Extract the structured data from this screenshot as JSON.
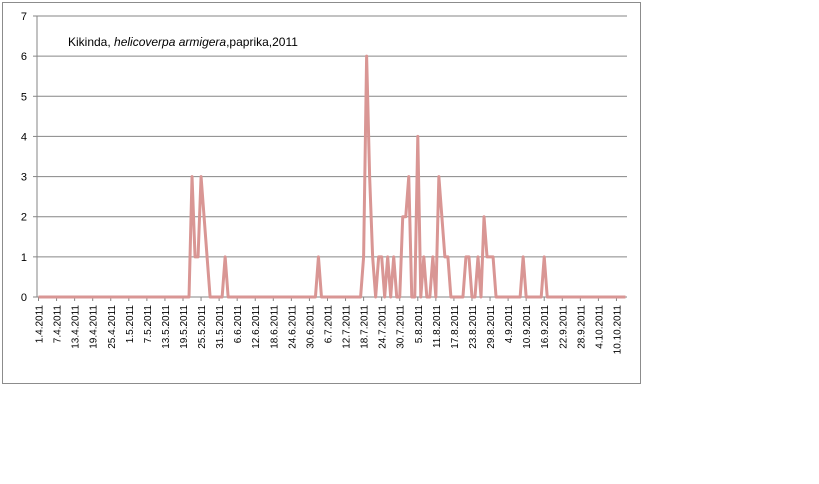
{
  "chart_data": {
    "type": "line",
    "title_parts": {
      "place": "Kikinda, ",
      "species": "helicoverpa armigera",
      "rest": ",paprika,2011"
    },
    "xlabel": "",
    "ylabel": "",
    "ylim": [
      0,
      7
    ],
    "yticks": [
      "0",
      "1",
      "2",
      "3",
      "4",
      "5",
      "6",
      "7"
    ],
    "grid": true,
    "legend": "none",
    "line_color": "#d99694",
    "xticks": [
      "1.4.2011",
      "7.4.2011",
      "13.4.2011",
      "19.4.2011",
      "25.4.2011",
      "1.5.2011",
      "7.5.2011",
      "13.5.2011",
      "19.5.2011",
      "25.5.2011",
      "31.5.2011",
      "6.6.2011",
      "12.6.2011",
      "18.6.2011",
      "24.6.2011",
      "30.6.2011",
      "6.7.2011",
      "12.7.2011",
      "18.7.2011",
      "24.7.2011",
      "30.7.2011",
      "5.8.2011",
      "11.8.2011",
      "17.8.2011",
      "23.8.2011",
      "29.8.2011",
      "4.9.2011",
      "10.9.2011",
      "16.9.2011",
      "22.9.2011",
      "28.9.2011",
      "4.10.2011",
      "10.10.2011"
    ],
    "x_start": "1.4.2011",
    "x_end": "13.10.2011",
    "points": [
      {
        "date": "22.5.2011",
        "y": 3
      },
      {
        "date": "23.5.2011",
        "y": 1
      },
      {
        "date": "24.5.2011",
        "y": 1
      },
      {
        "date": "25.5.2011",
        "y": 3
      },
      {
        "date": "26.5.2011",
        "y": 2
      },
      {
        "date": "27.5.2011",
        "y": 1
      },
      {
        "date": "2.6.2011",
        "y": 1
      },
      {
        "date": "3.7.2011",
        "y": 1
      },
      {
        "date": "18.7.2011",
        "y": 1
      },
      {
        "date": "19.7.2011",
        "y": 6
      },
      {
        "date": "20.7.2011",
        "y": 3
      },
      {
        "date": "21.7.2011",
        "y": 1
      },
      {
        "date": "23.7.2011",
        "y": 1
      },
      {
        "date": "24.7.2011",
        "y": 1
      },
      {
        "date": "26.7.2011",
        "y": 1
      },
      {
        "date": "28.7.2011",
        "y": 1
      },
      {
        "date": "31.7.2011",
        "y": 2
      },
      {
        "date": "1.8.2011",
        "y": 2
      },
      {
        "date": "2.8.2011",
        "y": 3
      },
      {
        "date": "5.8.2011",
        "y": 4
      },
      {
        "date": "7.8.2011",
        "y": 1
      },
      {
        "date": "10.8.2011",
        "y": 1
      },
      {
        "date": "12.8.2011",
        "y": 3
      },
      {
        "date": "13.8.2011",
        "y": 2
      },
      {
        "date": "14.8.2011",
        "y": 1
      },
      {
        "date": "15.8.2011",
        "y": 1
      },
      {
        "date": "21.8.2011",
        "y": 1
      },
      {
        "date": "22.8.2011",
        "y": 1
      },
      {
        "date": "25.8.2011",
        "y": 1
      },
      {
        "date": "27.8.2011",
        "y": 2
      },
      {
        "date": "28.8.2011",
        "y": 1
      },
      {
        "date": "29.8.2011",
        "y": 1
      },
      {
        "date": "30.8.2011",
        "y": 1
      },
      {
        "date": "9.9.2011",
        "y": 1
      },
      {
        "date": "16.9.2011",
        "y": 1
      }
    ]
  }
}
